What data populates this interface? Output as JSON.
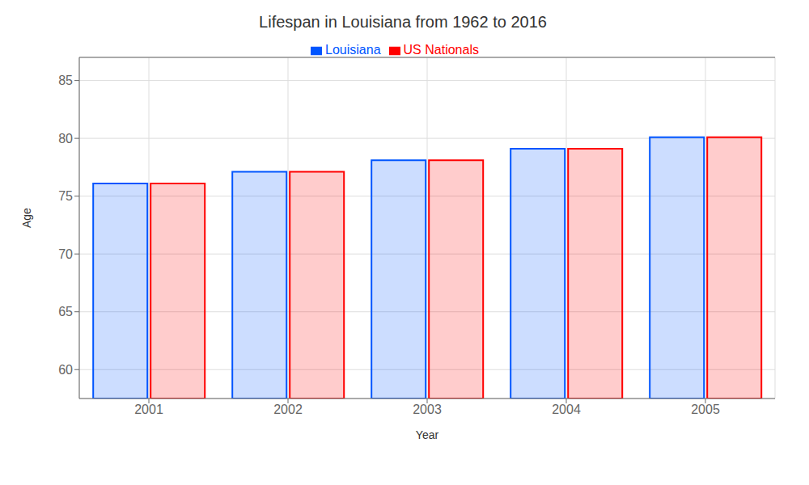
{
  "chart_data": {
    "type": "bar",
    "title": "Lifespan in Louisiana from 1962 to 2016",
    "xlabel": "Year",
    "ylabel": "Age",
    "categories": [
      "2001",
      "2002",
      "2003",
      "2004",
      "2005"
    ],
    "series": [
      {
        "name": "Louisiana",
        "color": "#0055ff",
        "values": [
          76.1,
          77.1,
          78.1,
          79.1,
          80.1
        ]
      },
      {
        "name": "US Nationals",
        "color": "#ff0000",
        "values": [
          76.1,
          77.1,
          78.1,
          79.1,
          80.1
        ]
      }
    ],
    "ylim": [
      57.5,
      87
    ],
    "yticks": [
      60,
      65,
      70,
      75,
      80,
      85
    ],
    "grid": true,
    "legend": "top"
  }
}
